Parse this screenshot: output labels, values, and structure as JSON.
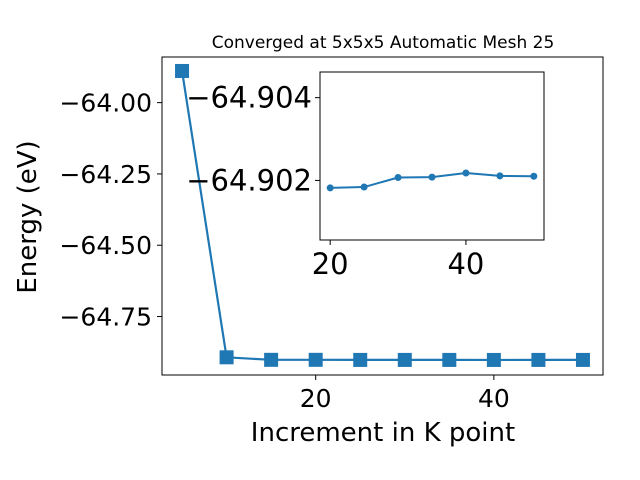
{
  "chart_data": [
    {
      "type": "line",
      "title": "Converged at 5x5x5 Automatic Mesh 25",
      "xlabel": "Increment in K point",
      "ylabel": "Energy (eV)",
      "x": [
        5,
        10,
        15,
        20,
        25,
        30,
        35,
        40,
        45,
        50
      ],
      "series": [
        {
          "values": [
            -63.889,
            -64.893,
            -64.9018,
            -64.9018,
            -64.9021,
            -64.9021,
            -64.9021,
            -64.9022,
            -64.9021,
            -64.9021
          ],
          "marker": "square",
          "color": "#1f77b4"
        }
      ],
      "xlim": [
        2.75,
        52.25
      ],
      "ylim": [
        -64.955,
        -63.84
      ],
      "xticks": [
        20,
        40
      ],
      "yticks": [
        -64.0,
        -64.25,
        -64.5,
        -64.75
      ],
      "xtick_labels": [
        "20",
        "40"
      ],
      "ytick_labels": [
        "−64.00",
        "−64.25",
        "−64.50",
        "−64.75"
      ],
      "grid": false
    },
    {
      "type": "line",
      "title": "",
      "placement": "inset-top-right",
      "x": [
        20,
        25,
        30,
        35,
        40,
        45,
        50
      ],
      "series": [
        {
          "values": [
            -64.90182,
            -64.90184,
            -64.90207,
            -64.90208,
            -64.90218,
            -64.90211,
            -64.9021
          ],
          "marker": "circle",
          "color": "#1f77b4"
        }
      ],
      "xlim": [
        18.5,
        51.5
      ],
      "ylim": [
        -64.90056,
        -64.90462
      ],
      "xticks": [
        20,
        40
      ],
      "yticks": [
        -64.904,
        -64.902
      ],
      "xtick_labels": [
        "20",
        "40"
      ],
      "ytick_labels": [
        "−64.904",
        "−64.902"
      ],
      "grid": false
    }
  ]
}
